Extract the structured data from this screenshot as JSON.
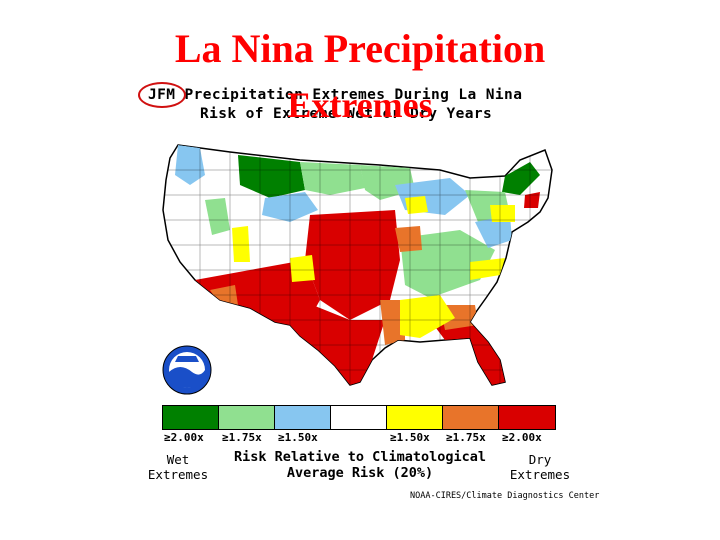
{
  "slide": {
    "title_line1": "La Nina Precipitation",
    "title_line2": "Extremes"
  },
  "map": {
    "header_line1": "JFM Precipitation Extremes During La Nina",
    "header_line2": "Risk of Extreme Wet or Dry Years",
    "highlighted_label": "JFM",
    "logo": "noaa-logo"
  },
  "legend": {
    "swatches": [
      {
        "color": "#008000",
        "label": "≥2.00x"
      },
      {
        "color": "#90e090",
        "label": "≥1.75x"
      },
      {
        "color": "#87c6f0",
        "label": "≥1.50x"
      },
      {
        "color": "#ffffff",
        "label": ""
      },
      {
        "color": "#ffff00",
        "label": "≥1.50x"
      },
      {
        "color": "#e8742a",
        "label": "≥1.75x"
      },
      {
        "color": "#d90000",
        "label": "≥2.00x"
      }
    ],
    "left_label_line1": "Wet",
    "left_label_line2": "Extremes",
    "right_label_line1": "Dry",
    "right_label_line2": "Extremes",
    "center_line1": "Risk Relative to Climatological",
    "center_line2": "Average Risk (20%)"
  },
  "credit": "NOAA-CIRES/Climate Diagnostics Center",
  "colors": {
    "title": "#ff0000",
    "wet_strong": "#008000",
    "wet_medium": "#90e090",
    "wet_weak": "#87c6f0",
    "dry_weak": "#ffff00",
    "dry_medium": "#e8742a",
    "dry_strong": "#d90000"
  }
}
